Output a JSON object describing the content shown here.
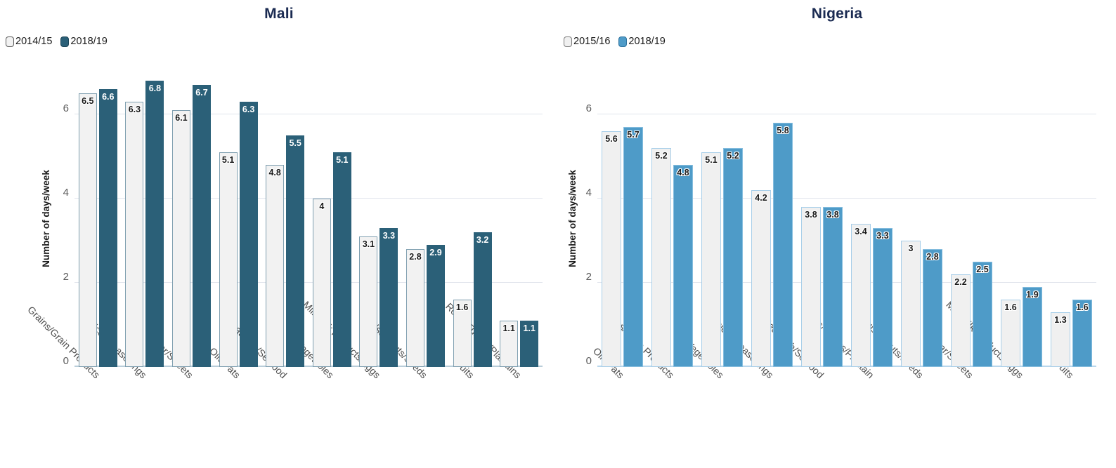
{
  "page": {
    "background": "#ffffff"
  },
  "chart_data": [
    {
      "type": "bar",
      "title": "Mali",
      "title_color": "#1b2b52",
      "ylabel": "Number of days/week",
      "yticks": [
        0,
        2,
        4,
        6
      ],
      "ylim": [
        0,
        7.05
      ],
      "grid": "horizontal",
      "legend_position": "top-left",
      "gridline_color": "#e0e4ec",
      "baseline_color": "#b9cdd9",
      "categories": [
        "Grains/Grain Products",
        "Spices/Seasonings",
        "Sugar/Sweets",
        "Oils/Fats",
        "Meat/Fish/Seafood",
        "Vegetables",
        "Milk/Milk Products/Eggs",
        "Pulses/Nuts/Seeds",
        "Fruits",
        "Roots/Tubers/Plantains"
      ],
      "series": [
        {
          "name": "2014/15",
          "values": [
            6.5,
            6.3,
            6.1,
            5.1,
            4.8,
            4,
            3.1,
            2.8,
            1.6,
            1.1
          ],
          "fill": "#f2f2f2",
          "border": "#7f9fb0",
          "legend_border": "#5a5a5a",
          "label_color": "#1a1a1a",
          "label_halo": true
        },
        {
          "name": "2018/19",
          "values": [
            6.6,
            6.8,
            6.7,
            6.3,
            5.5,
            5.1,
            3.3,
            2.9,
            3.2,
            1.1
          ],
          "fill": "#2b6078",
          "border": "#2b6078",
          "legend_border": "#1c4558",
          "label_color": "#ffffff",
          "label_halo": false
        }
      ]
    },
    {
      "type": "bar",
      "title": "Nigeria",
      "title_color": "#1b2b52",
      "ylabel": "Number of days/week",
      "yticks": [
        0,
        2,
        4,
        6
      ],
      "ylim": [
        0,
        7.05
      ],
      "grid": "horizontal",
      "legend_position": "top-left",
      "gridline_color": "#e0e4ec",
      "baseline_color": "#b8d6ec",
      "categories": [
        "Oils/Fats",
        "Grains/Grain Products",
        "Vegetables",
        "Spices/Seasonings",
        "Meat/Fish/Seafood",
        "Roots/Tubers/Plantain",
        "Pulses/Nuts/Seeds",
        "Sugar/Sweets",
        "Milk/Milk Products/Eggs",
        "Fruits"
      ],
      "series": [
        {
          "name": "2015/16",
          "values": [
            5.6,
            5.2,
            5.1,
            4.2,
            3.8,
            3.4,
            3,
            2.2,
            1.6,
            1.3
          ],
          "fill": "#f0f0f0",
          "border": "#a9cfe9",
          "legend_border": "#7a7a7a",
          "label_color": "#1a1a1a",
          "label_halo": true
        },
        {
          "name": "2018/19",
          "values": [
            5.7,
            4.8,
            5.2,
            5.8,
            3.8,
            3.3,
            2.8,
            2.5,
            1.9,
            1.6
          ],
          "fill": "#4e9bc8",
          "border": "#86bedf",
          "legend_border": "#2f739e",
          "label_color": "#1a1a1a",
          "label_halo": true
        }
      ]
    }
  ]
}
